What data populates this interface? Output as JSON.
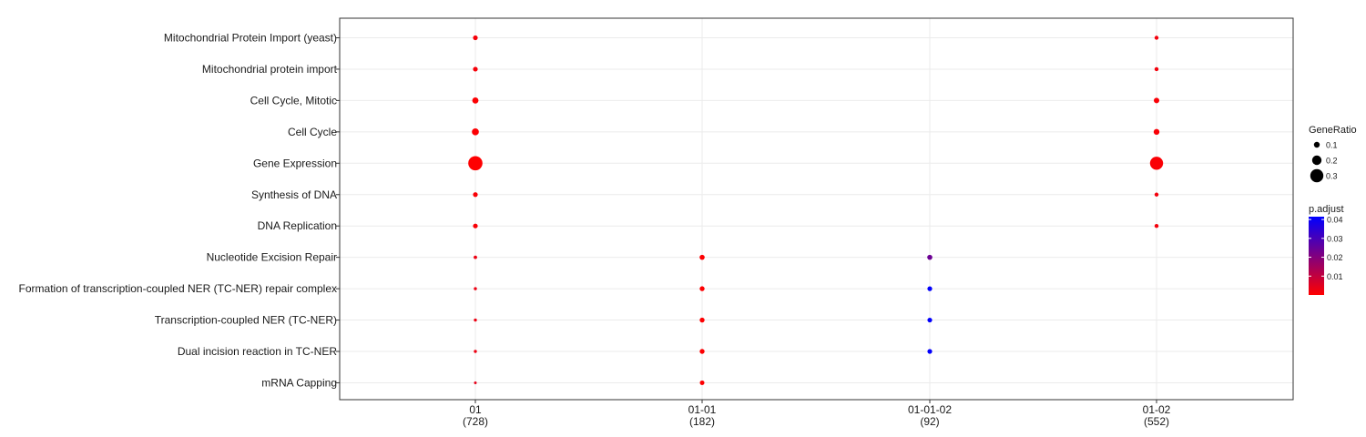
{
  "chart_data": {
    "type": "scatter",
    "title": "",
    "xlabel": "",
    "ylabel": "",
    "grid": true,
    "legend_position": "right",
    "categories_y": [
      "Mitochondrial Protein Import (yeast)",
      "Mitochondrial protein import",
      "Cell Cycle, Mitotic",
      "Cell Cycle",
      "Gene Expression",
      "Synthesis of DNA",
      "DNA Replication",
      "Nucleotide Excision Repair",
      "Formation of transcription-coupled NER (TC-NER) repair complex",
      "Transcription-coupled NER (TC-NER)",
      "Dual incision reaction in TC-NER",
      "mRNA Capping"
    ],
    "categories_x": [
      {
        "id": "01",
        "count": "(728)"
      },
      {
        "id": "01-01",
        "count": "(182)"
      },
      {
        "id": "01-01-02",
        "count": "(92)"
      },
      {
        "id": "01-02",
        "count": "(552)"
      }
    ],
    "points": [
      {
        "x": "01",
        "y": "Mitochondrial Protein Import (yeast)",
        "GeneRatio": 0.07,
        "p_adjust": 0.0015
      },
      {
        "x": "01",
        "y": "Mitochondrial protein import",
        "GeneRatio": 0.07,
        "p_adjust": 0.0015
      },
      {
        "x": "01",
        "y": "Cell Cycle, Mitotic",
        "GeneRatio": 0.11,
        "p_adjust": 0.0005
      },
      {
        "x": "01",
        "y": "Cell Cycle",
        "GeneRatio": 0.13,
        "p_adjust": 0.0005
      },
      {
        "x": "01",
        "y": "Gene Expression",
        "GeneRatio": 0.33,
        "p_adjust": 0.0002
      },
      {
        "x": "01",
        "y": "Synthesis of DNA",
        "GeneRatio": 0.07,
        "p_adjust": 0.001
      },
      {
        "x": "01",
        "y": "DNA Replication",
        "GeneRatio": 0.07,
        "p_adjust": 0.001
      },
      {
        "x": "01",
        "y": "Nucleotide Excision Repair",
        "GeneRatio": 0.035,
        "p_adjust": 0.003
      },
      {
        "x": "01",
        "y": "Formation of transcription-coupled NER (TC-NER) repair complex",
        "GeneRatio": 0.025,
        "p_adjust": 0.003
      },
      {
        "x": "01",
        "y": "Transcription-coupled NER (TC-NER)",
        "GeneRatio": 0.025,
        "p_adjust": 0.003
      },
      {
        "x": "01",
        "y": "Dual incision reaction in TC-NER",
        "GeneRatio": 0.025,
        "p_adjust": 0.003
      },
      {
        "x": "01",
        "y": "mRNA Capping",
        "GeneRatio": 0.015,
        "p_adjust": 0.004
      },
      {
        "x": "01-01",
        "y": "Nucleotide Excision Repair",
        "GeneRatio": 0.08,
        "p_adjust": 0.0003
      },
      {
        "x": "01-01",
        "y": "Formation of transcription-coupled NER (TC-NER) repair complex",
        "GeneRatio": 0.075,
        "p_adjust": 0.0003
      },
      {
        "x": "01-01",
        "y": "Transcription-coupled NER (TC-NER)",
        "GeneRatio": 0.075,
        "p_adjust": 0.0003
      },
      {
        "x": "01-01",
        "y": "Dual incision reaction in TC-NER",
        "GeneRatio": 0.075,
        "p_adjust": 0.0003
      },
      {
        "x": "01-01",
        "y": "mRNA Capping",
        "GeneRatio": 0.065,
        "p_adjust": 0.0003
      },
      {
        "x": "01-01-02",
        "y": "Nucleotide Excision Repair",
        "GeneRatio": 0.08,
        "p_adjust": 0.024
      },
      {
        "x": "01-01-02",
        "y": "Formation of transcription-coupled NER (TC-NER) repair complex",
        "GeneRatio": 0.07,
        "p_adjust": 0.041
      },
      {
        "x": "01-01-02",
        "y": "Transcription-coupled NER (TC-NER)",
        "GeneRatio": 0.07,
        "p_adjust": 0.041
      },
      {
        "x": "01-01-02",
        "y": "Dual incision reaction in TC-NER",
        "GeneRatio": 0.07,
        "p_adjust": 0.041
      },
      {
        "x": "01-02",
        "y": "Mitochondrial Protein Import (yeast)",
        "GeneRatio": 0.05,
        "p_adjust": 0.002
      },
      {
        "x": "01-02",
        "y": "Mitochondrial protein import",
        "GeneRatio": 0.05,
        "p_adjust": 0.002
      },
      {
        "x": "01-02",
        "y": "Cell Cycle, Mitotic",
        "GeneRatio": 0.09,
        "p_adjust": 0.001
      },
      {
        "x": "01-02",
        "y": "Cell Cycle",
        "GeneRatio": 0.1,
        "p_adjust": 0.001
      },
      {
        "x": "01-02",
        "y": "Gene Expression",
        "GeneRatio": 0.3,
        "p_adjust": 0.0008
      },
      {
        "x": "01-02",
        "y": "Synthesis of DNA",
        "GeneRatio": 0.05,
        "p_adjust": 0.002
      },
      {
        "x": "01-02",
        "y": "DNA Replication",
        "GeneRatio": 0.05,
        "p_adjust": 0.002
      }
    ],
    "size_legend": {
      "title": "GeneRatio",
      "values": [
        0.1,
        0.2,
        0.3
      ],
      "labels": [
        "0.1",
        "0.2",
        "0.3"
      ]
    },
    "color_legend": {
      "title": "p.adjust",
      "low_color": "#ff0000",
      "high_color": "#0000ff",
      "range": [
        0,
        0.0415
      ],
      "ticks": [
        0.01,
        0.02,
        0.03,
        0.04
      ],
      "labels": [
        "0.01",
        "0.02",
        "0.03",
        "0.04"
      ]
    }
  }
}
